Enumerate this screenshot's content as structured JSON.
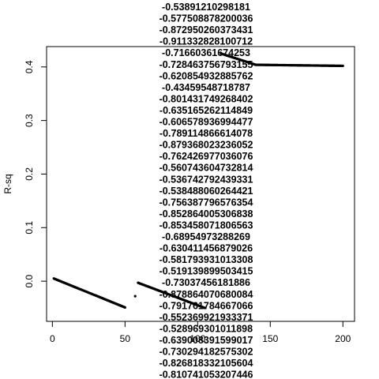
{
  "chart_data": {
    "type": "scatter",
    "title": "",
    "xlabel": "",
    "ylabel": "R-sq",
    "xlim": [
      -4,
      208
    ],
    "ylim": [
      -0.075,
      0.438
    ],
    "x_ticks": [
      0,
      50,
      100,
      150,
      200
    ],
    "x_tick_labels": [
      "0",
      "50",
      "100",
      "150",
      "200"
    ],
    "y_ticks": [
      0.0,
      0.1,
      0.2,
      0.3,
      0.4
    ],
    "y_tick_labels": [
      "0.0",
      "0.1",
      "0.2",
      "0.3",
      "0.4"
    ],
    "point_color": "#000000",
    "segments": [
      {
        "x_start": 1,
        "x_end": 50,
        "y_start": 0.005,
        "y_end": -0.049,
        "step": 0.5
      },
      {
        "x_start": 59,
        "x_end": 105,
        "y_start": -0.003,
        "y_end": -0.05,
        "step": 0.5
      },
      {
        "x_start": 116,
        "x_end": 140,
        "y_start": 0.425,
        "y_end": 0.404,
        "step": 0.5
      },
      {
        "x_start": 140,
        "x_end": 200,
        "y_start": 0.404,
        "y_end": 0.402,
        "step": 0.5
      }
    ],
    "extra_points": [
      {
        "x": 57,
        "y": -0.028
      }
    ],
    "overlay_labels": [
      "-0.53891210298181",
      "-0.577508878200036",
      "-0.872950260373431",
      "-0.911332828100712",
      "-0.71660361674253",
      "-0.728463756793155",
      "-0.620854932885762",
      "-0.43459548718787",
      "-0.801431749268402",
      "-0.635165262114849",
      "-0.606578936994477",
      "-0.789114866614078",
      "-0.879368023236052",
      "-0.762426977036076",
      "-0.560743604732814",
      "-0.536742792439331",
      "-0.538488060264421",
      "-0.756387796576354",
      "-0.852864005306838",
      "-0.853458071806563",
      "-0.68954973288269",
      "-0.630411456879026",
      "-0.581793931013308",
      "-0.519139899503415",
      "-0.73037456181886",
      "-0.878864070680084",
      "-0.791761784667066",
      "-0.552369921933371",
      "-0.528969301011898",
      "-0.639008391599017",
      "-0.730294182575302",
      "-0.826818332105604",
      "-0.810741053207446"
    ]
  }
}
